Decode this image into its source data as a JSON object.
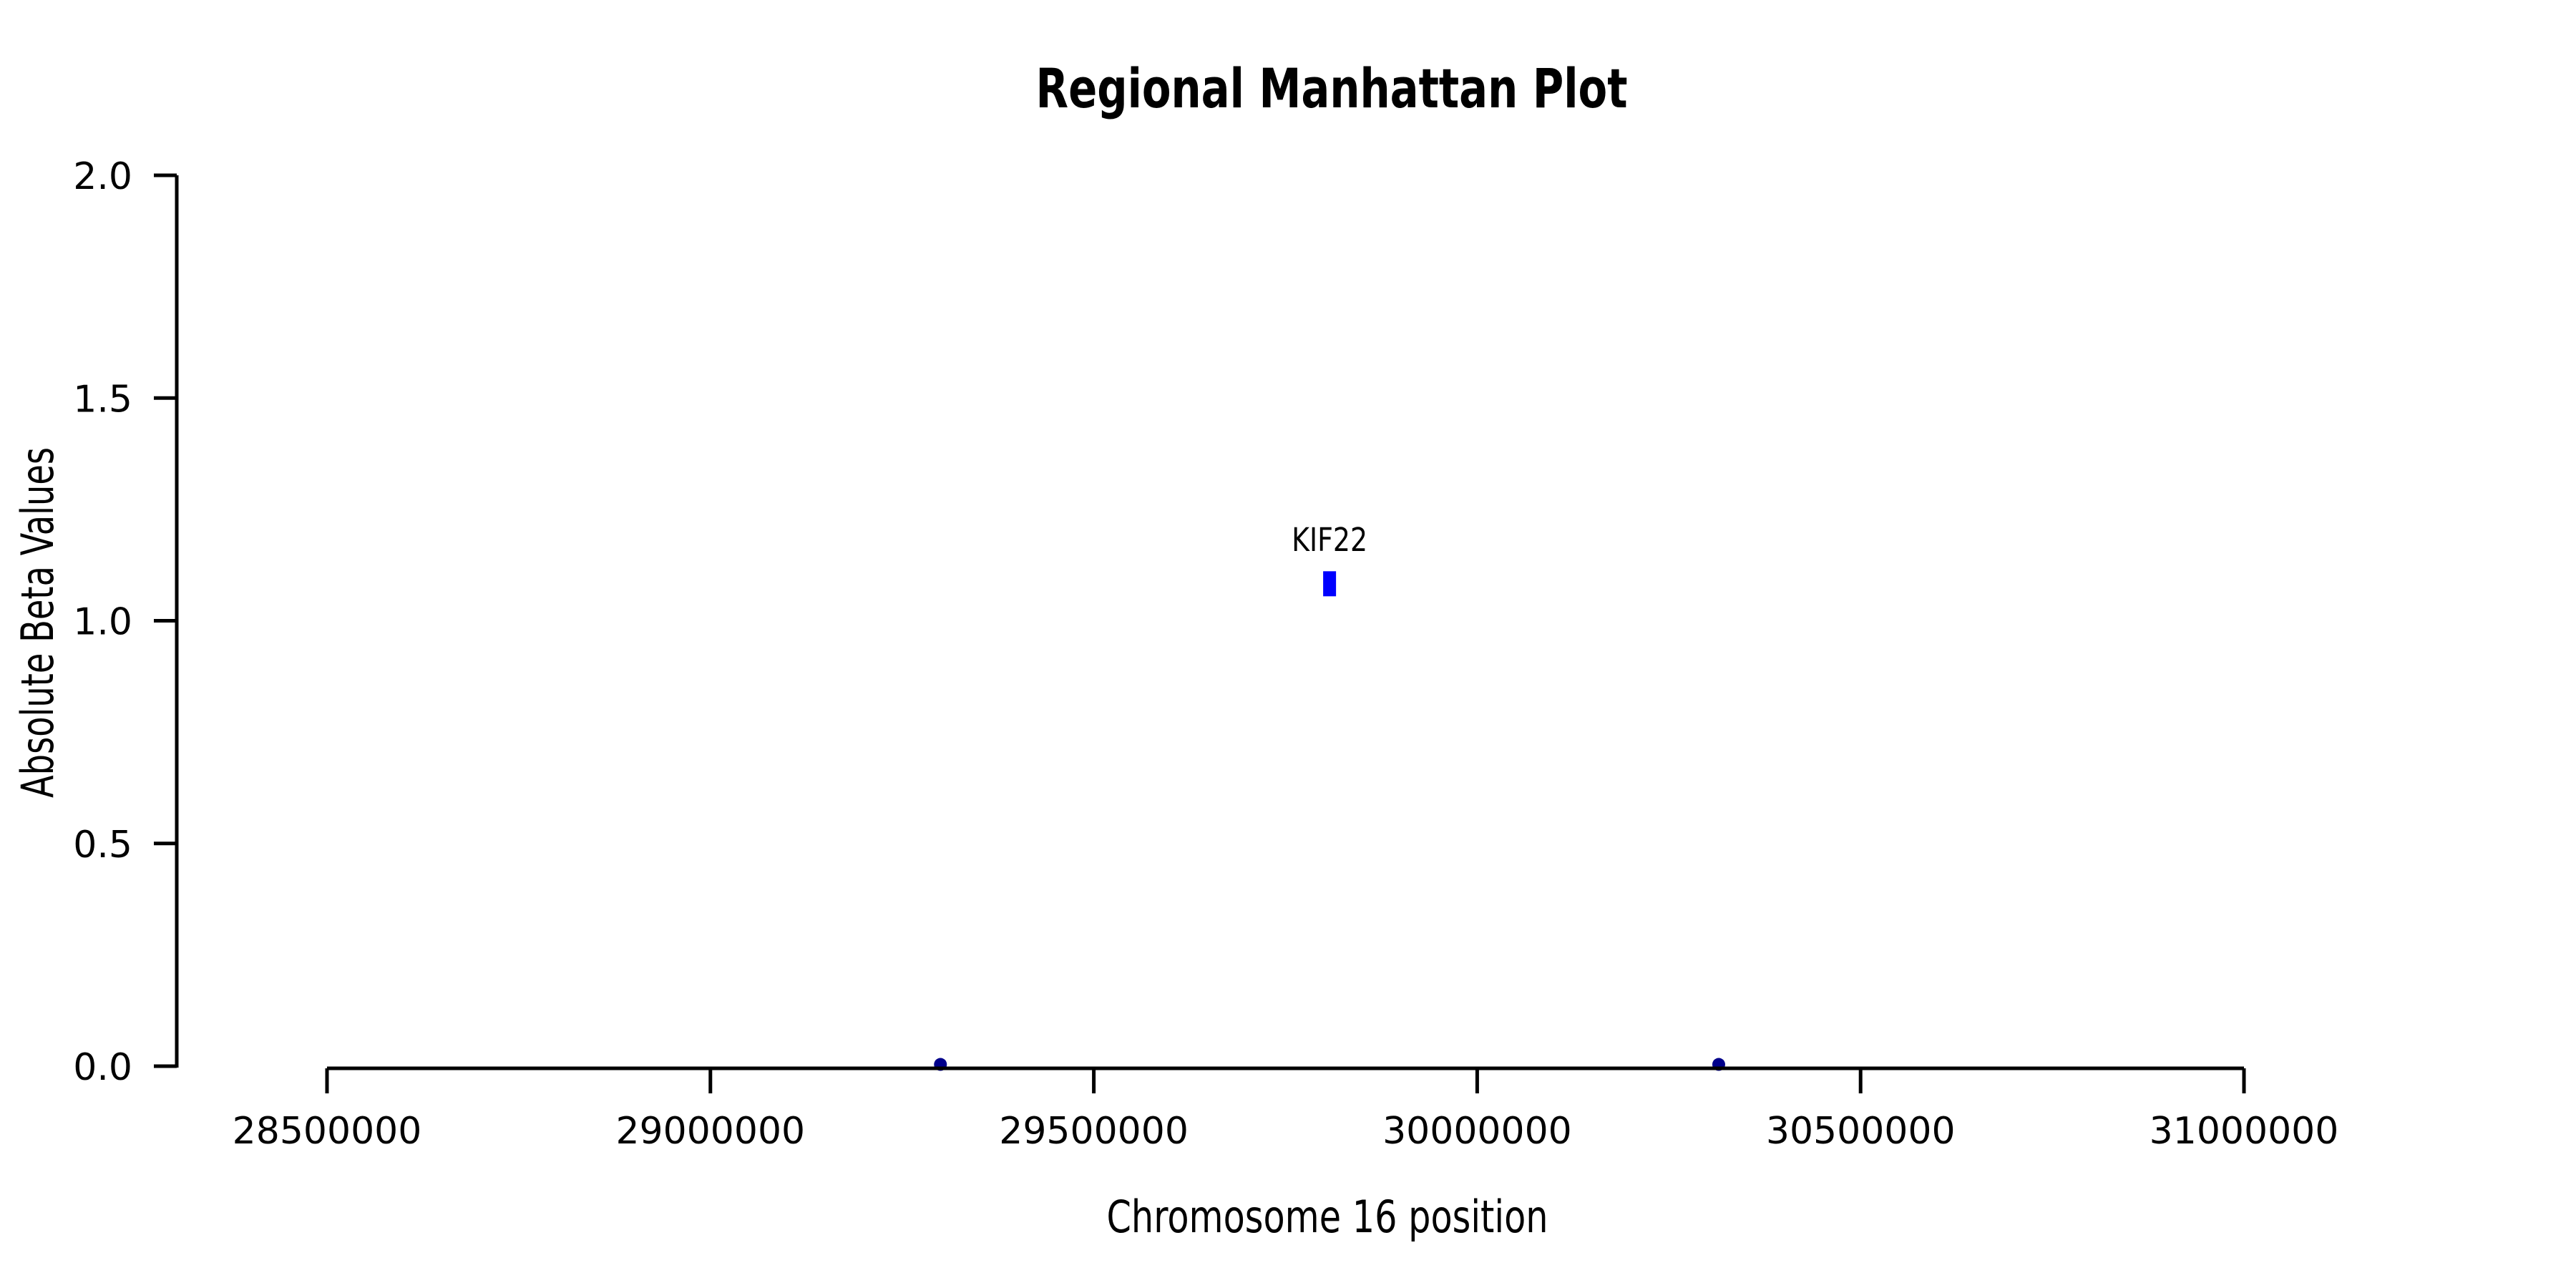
{
  "page": {
    "background": "#ffffff"
  },
  "chart_data": {
    "type": "scatter",
    "title": "Regional Manhattan Plot",
    "xlabel": "Chromosome 16 position",
    "ylabel": "Absolute Beta Values",
    "x_ticks": [
      28500000,
      29000000,
      29500000,
      30000000,
      30500000,
      31000000
    ],
    "x_tick_labels": [
      "28500000",
      "29000000",
      "29500000",
      "30000000",
      "30500000",
      "31000000"
    ],
    "y_ticks": [
      0.0,
      0.5,
      1.0,
      1.5,
      2.0
    ],
    "y_tick_labels": [
      "0.0",
      "0.5",
      "1.0",
      "1.5",
      "2.0"
    ],
    "xlim": [
      28500000,
      31000000
    ],
    "ylim": [
      0.0,
      2.0
    ],
    "grid": false,
    "legend": false,
    "axis_color": "#000000",
    "background_color": "#ffffff",
    "points": [
      {
        "x": 29300000,
        "y": 0.004,
        "shape": "circle",
        "color": "#00008B"
      },
      {
        "x": 30315000,
        "y": 0.004,
        "shape": "circle",
        "color": "#00008B"
      }
    ],
    "annotations": [
      {
        "label": "KIF22",
        "x": 29807500,
        "y": 1.083,
        "shape": "rect",
        "color": "#0000FF"
      }
    ]
  }
}
